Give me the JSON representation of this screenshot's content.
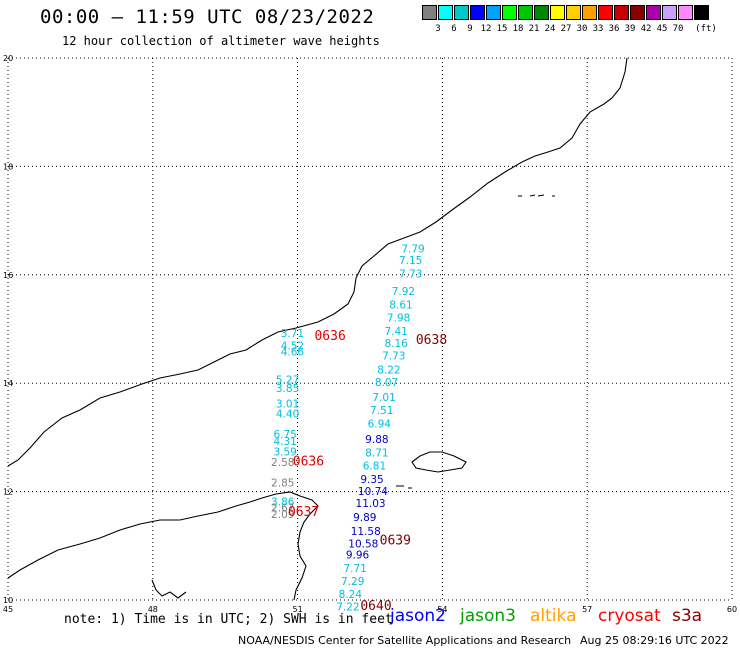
{
  "header": {
    "title": "00:00 – 11:59 UTC 08/23/2022",
    "subtitle": "12 hour collection of altimeter wave heights"
  },
  "legend": {
    "unit_label": "(ft)",
    "swatches": [
      {
        "color": "#808080",
        "label": ""
      },
      {
        "color": "#00ffff",
        "label": "3"
      },
      {
        "color": "#00c8c8",
        "label": "6"
      },
      {
        "color": "#0000ff",
        "label": "9"
      },
      {
        "color": "#00a0ff",
        "label": "12"
      },
      {
        "color": "#00ff00",
        "label": "15"
      },
      {
        "color": "#00c800",
        "label": "18"
      },
      {
        "color": "#008800",
        "label": "21"
      },
      {
        "color": "#ffff00",
        "label": "24"
      },
      {
        "color": "#ffd000",
        "label": "27"
      },
      {
        "color": "#ffa000",
        "label": "30"
      },
      {
        "color": "#ff0000",
        "label": "33"
      },
      {
        "color": "#c80000",
        "label": "36"
      },
      {
        "color": "#880000",
        "label": "39"
      },
      {
        "color": "#aa00aa",
        "label": "42"
      },
      {
        "color": "#c8a0ff",
        "label": "45"
      },
      {
        "color": "#ff88ff",
        "label": "70"
      },
      {
        "color": "#000000",
        "label": ""
      }
    ]
  },
  "axes": {
    "lon_ticks": [
      "45",
      "48",
      "51",
      "54",
      "57",
      "60"
    ],
    "lat_ticks": [
      "10",
      "12",
      "14",
      "16",
      "18",
      "20"
    ],
    "lon_range": [
      45,
      60
    ],
    "lat_range": [
      10,
      20
    ]
  },
  "colors": {
    "cyan": "#00bfdf",
    "gray": "#808080",
    "blue": "#0000c8",
    "red": "#e00000",
    "darkred": "#800000",
    "jason2": "#0000ff",
    "jason3": "#00a000",
    "altika": "#ffa000",
    "cryosat": "#ff0000",
    "s3a": "#880000"
  },
  "observations": [
    {
      "lon": 53.15,
      "lat": 16.41,
      "value": "7.79",
      "color": "cyan"
    },
    {
      "lon": 53.1,
      "lat": 16.2,
      "value": "7.15",
      "color": "cyan"
    },
    {
      "lon": 53.1,
      "lat": 15.95,
      "value": "7.73",
      "color": "cyan"
    },
    {
      "lon": 52.95,
      "lat": 15.63,
      "value": "7.92",
      "color": "cyan"
    },
    {
      "lon": 52.9,
      "lat": 15.38,
      "value": "8.61",
      "color": "cyan"
    },
    {
      "lon": 52.85,
      "lat": 15.14,
      "value": "7.98",
      "color": "cyan"
    },
    {
      "lon": 52.8,
      "lat": 14.89,
      "value": "7.41",
      "color": "cyan"
    },
    {
      "lon": 52.8,
      "lat": 14.67,
      "value": "8.16",
      "color": "cyan"
    },
    {
      "lon": 52.75,
      "lat": 14.44,
      "value": "7.73",
      "color": "cyan"
    },
    {
      "lon": 52.65,
      "lat": 14.18,
      "value": "8.22",
      "color": "cyan"
    },
    {
      "lon": 52.6,
      "lat": 13.95,
      "value": "8.07",
      "color": "cyan"
    },
    {
      "lon": 52.55,
      "lat": 13.67,
      "value": "7.01",
      "color": "cyan"
    },
    {
      "lon": 52.5,
      "lat": 13.43,
      "value": "7.51",
      "color": "cyan"
    },
    {
      "lon": 52.45,
      "lat": 13.18,
      "value": "6.94",
      "color": "cyan"
    },
    {
      "lon": 52.4,
      "lat": 12.9,
      "value": "9.88",
      "color": "blue"
    },
    {
      "lon": 52.4,
      "lat": 12.65,
      "value": "8.71",
      "color": "cyan"
    },
    {
      "lon": 52.35,
      "lat": 12.41,
      "value": "6.81",
      "color": "cyan"
    },
    {
      "lon": 52.3,
      "lat": 12.16,
      "value": "9.35",
      "color": "blue"
    },
    {
      "lon": 52.25,
      "lat": 11.94,
      "value": "10.74",
      "color": "blue"
    },
    {
      "lon": 52.2,
      "lat": 11.72,
      "value": "11.03",
      "color": "blue"
    },
    {
      "lon": 52.15,
      "lat": 11.46,
      "value": "9.89",
      "color": "blue"
    },
    {
      "lon": 52.1,
      "lat": 11.2,
      "value": "11.58",
      "color": "blue"
    },
    {
      "lon": 52.05,
      "lat": 10.97,
      "value": "10.58",
      "color": "blue"
    },
    {
      "lon": 52.0,
      "lat": 10.77,
      "value": "9.96",
      "color": "blue"
    },
    {
      "lon": 51.95,
      "lat": 10.52,
      "value": "7.71",
      "color": "cyan"
    },
    {
      "lon": 51.9,
      "lat": 10.28,
      "value": "7.29",
      "color": "cyan"
    },
    {
      "lon": 51.85,
      "lat": 10.04,
      "value": "8.24",
      "color": "cyan"
    },
    {
      "lon": 51.8,
      "lat": 9.81,
      "value": "7.22",
      "color": "cyan"
    },
    {
      "lon": 50.65,
      "lat": 14.85,
      "value": "3.71",
      "color": "cyan"
    },
    {
      "lon": 50.65,
      "lat": 14.62,
      "value": "4.52",
      "color": "cyan"
    },
    {
      "lon": 50.65,
      "lat": 14.51,
      "value": "4.66",
      "color": "cyan"
    },
    {
      "lon": 50.55,
      "lat": 13.99,
      "value": "5.27",
      "color": "cyan"
    },
    {
      "lon": 50.55,
      "lat": 13.84,
      "value": "3.85",
      "color": "cyan"
    },
    {
      "lon": 50.55,
      "lat": 13.55,
      "value": "3.01",
      "color": "cyan"
    },
    {
      "lon": 50.55,
      "lat": 13.37,
      "value": "4.40",
      "color": "cyan"
    },
    {
      "lon": 50.5,
      "lat": 12.99,
      "value": "6.75",
      "color": "cyan"
    },
    {
      "lon": 50.5,
      "lat": 12.86,
      "value": "4.31",
      "color": "cyan"
    },
    {
      "lon": 50.5,
      "lat": 12.67,
      "value": "3.59",
      "color": "cyan"
    },
    {
      "lon": 50.45,
      "lat": 12.47,
      "value": "2.58",
      "color": "gray"
    },
    {
      "lon": 50.45,
      "lat": 12.09,
      "value": "2.85",
      "color": "gray"
    },
    {
      "lon": 50.45,
      "lat": 11.74,
      "value": "3.86",
      "color": "cyan"
    },
    {
      "lon": 50.45,
      "lat": 11.63,
      "value": "2.67",
      "color": "gray"
    },
    {
      "lon": 50.45,
      "lat": 11.51,
      "value": "2.09",
      "color": "gray"
    }
  ],
  "pass_times": [
    {
      "lon": 51.35,
      "lat": 14.8,
      "text": "0636",
      "color": "red"
    },
    {
      "lon": 50.9,
      "lat": 12.48,
      "text": "0636",
      "color": "red"
    },
    {
      "lon": 50.8,
      "lat": 11.55,
      "text": "0637",
      "color": "red"
    },
    {
      "lon": 53.45,
      "lat": 14.72,
      "text": "0638",
      "color": "darkred"
    },
    {
      "lon": 52.7,
      "lat": 11.02,
      "text": "0639",
      "color": "darkred"
    },
    {
      "lon": 52.3,
      "lat": 9.82,
      "text": "0640",
      "color": "darkred"
    }
  ],
  "footer": {
    "note": "note: 1) Time is in UTC; 2) SWH is in feet",
    "satellites": [
      {
        "name": "jason2",
        "color": "jason2"
      },
      {
        "name": "jason3",
        "color": "jason3"
      },
      {
        "name": "altika",
        "color": "altika"
      },
      {
        "name": "cryosat",
        "color": "cryosat"
      },
      {
        "name": "s3a",
        "color": "s3a"
      }
    ],
    "credit": "NOAA/NESDIS Center for Satellite Applications and Research",
    "timestamp": "Aug 25 08:29:16 UTC 2022"
  }
}
